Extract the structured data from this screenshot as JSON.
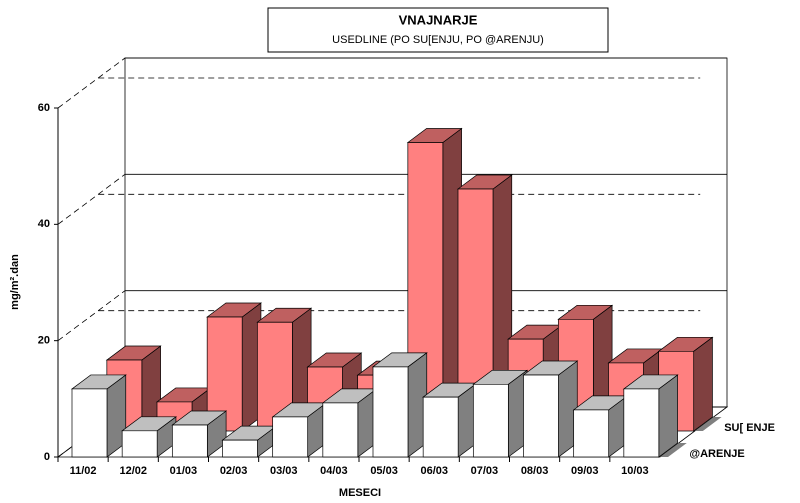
{
  "chart_data": {
    "type": "bar3d",
    "title": "VNAJNARJE",
    "subtitle": "USEDLINE (PO SU[ENJU, PO @ARENJU)",
    "x_label": "MESECI",
    "y_label": "mg/m².dan",
    "categories": [
      "11/02",
      "12/02",
      "01/03",
      "02/03",
      "03/03",
      "04/03",
      "05/03",
      "06/03",
      "07/03",
      "08/03",
      "09/03",
      "10/03"
    ],
    "series": [
      {
        "name": "SU[ ENJE",
        "color": "#ff8080",
        "values": [
          12.2,
          5.0,
          19.6,
          18.7,
          11.0,
          9.6,
          49.6,
          41.6,
          15.8,
          19.2,
          11.7,
          13.7
        ]
      },
      {
        "name": "@ARENJE",
        "color": "#ffffff",
        "values": [
          11.7,
          4.5,
          5.5,
          2.9,
          6.9,
          9.3,
          15.5,
          10.3,
          12.5,
          14.1,
          8.1,
          11.7
        ]
      }
    ],
    "ylim": [
      0,
      60
    ],
    "yticks": [
      0,
      20,
      40,
      60
    ],
    "grid": true
  }
}
